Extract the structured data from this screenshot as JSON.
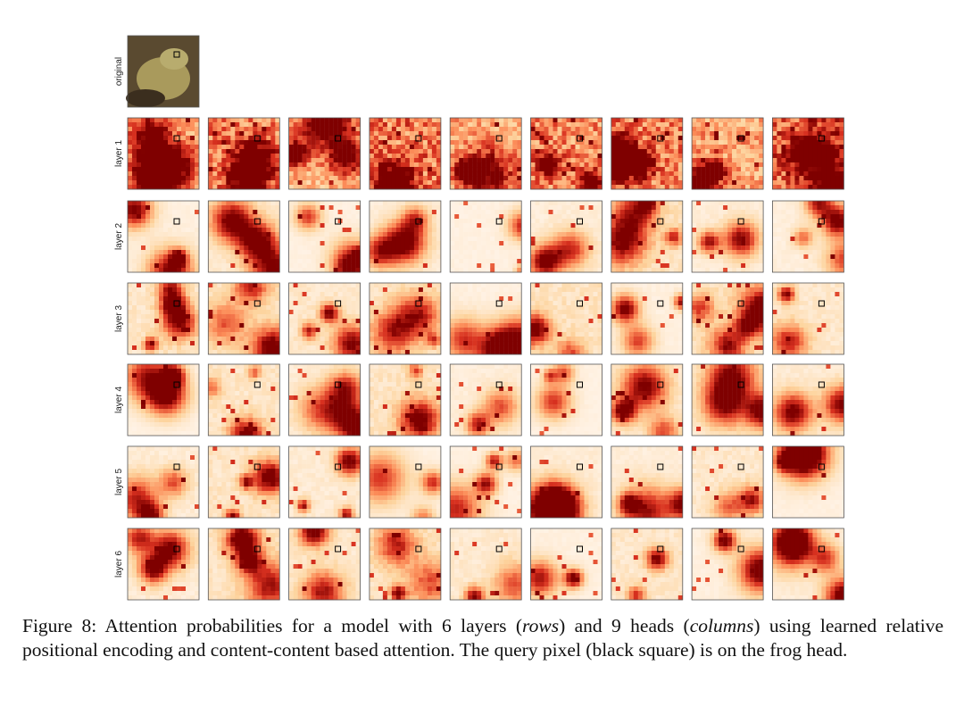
{
  "figure": {
    "row_labels": [
      "original",
      "layer 1",
      "layer 2",
      "layer 3",
      "layer 4",
      "layer 5",
      "layer 6"
    ],
    "caption": [
      "Figure 8:  Attention probabilities for a model with 6 layers (",
      "rows",
      ") and 9 heads (",
      "columns",
      ") using learned relative positional encoding and content-content based attention.  The query pixel (black square) is on the frog head."
    ]
  }
}
